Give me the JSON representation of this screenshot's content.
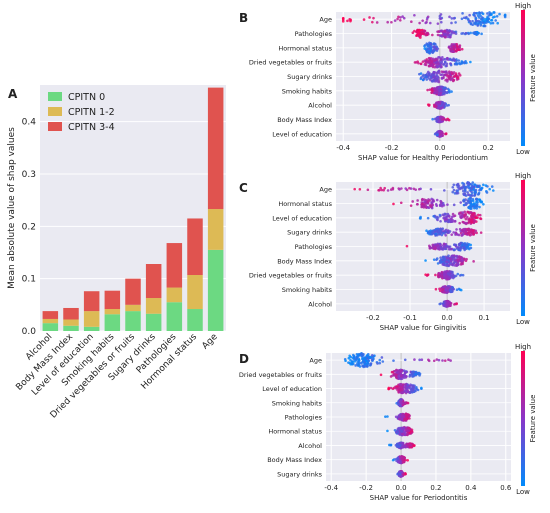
{
  "colors": {
    "cpitn0": "#6cd982",
    "cpitn12": "#ddba55",
    "cpitn34": "#e0534f",
    "panel_bg": "#eaeaf2",
    "high": "#ff0052",
    "low": "#008bfb"
  },
  "chart_data": [
    {
      "panel": "A",
      "type": "bar",
      "stacked": true,
      "ylabel": "Mean absolute value of shap values",
      "xlabel": "",
      "ylim": [
        0,
        0.47
      ],
      "yticks": [
        0.0,
        0.1,
        0.2,
        0.3,
        0.4
      ],
      "legend": "top-left",
      "grid": true,
      "categories": [
        "Alcohol",
        "Body Mass Index",
        "Level of education",
        "Smoking habits",
        "Dried vegetables or fruits",
        "Sugary drinks",
        "Pathologies",
        "Hormonal status",
        "Age"
      ],
      "series": [
        {
          "name": "CPITN 0",
          "values": [
            0.015,
            0.01,
            0.008,
            0.032,
            0.038,
            0.033,
            0.055,
            0.042,
            0.155
          ]
        },
        {
          "name": "CPITN 1-2",
          "values": [
            0.008,
            0.012,
            0.03,
            0.01,
            0.012,
            0.03,
            0.028,
            0.065,
            0.078
          ]
        },
        {
          "name": "CPITN 3-4",
          "values": [
            0.015,
            0.022,
            0.038,
            0.035,
            0.05,
            0.065,
            0.085,
            0.108,
            0.232
          ]
        }
      ]
    },
    {
      "panel": "B",
      "type": "scatter",
      "subtype": "shap-violin",
      "xlabel": "SHAP value for Healthy Periodontium",
      "xlim": [
        -0.43,
        0.29
      ],
      "xticks": [
        -0.4,
        -0.2,
        0.0,
        0.2
      ],
      "grid": true,
      "features": [
        "Age",
        "Pathologies",
        "Hormonal status",
        "Dried vegetables or fruits",
        "Sugary drinks",
        "Smoking habits",
        "Alcohol",
        "Body Mass Index",
        "Level of education"
      ],
      "colorbar": {
        "label": "Feature value",
        "high": "High",
        "low": "Low"
      },
      "distributions": [
        {
          "min": -0.4,
          "max": 0.27,
          "modes": [
            [
              -0.25,
              0.25,
              0.15
            ],
            [
              0.02,
              0.3,
              0.55
            ],
            [
              0.17,
              0.07,
              1.0
            ]
          ],
          "lowSide": "right"
        },
        {
          "min": -0.12,
          "max": 0.18,
          "modes": [
            [
              -0.08,
              0.03,
              0.6
            ],
            [
              0.03,
              0.03,
              0.6
            ],
            [
              0.15,
              0.01,
              0.2
            ]
          ],
          "lowSide": "right"
        },
        {
          "min": -0.08,
          "max": 0.12,
          "modes": [
            [
              -0.04,
              0.025,
              0.8
            ],
            [
              0.06,
              0.025,
              0.6
            ]
          ],
          "lowSide": "left"
        },
        {
          "min": -0.14,
          "max": 0.14,
          "modes": [
            [
              -0.02,
              0.05,
              0.7
            ],
            [
              0.06,
              0.04,
              0.3
            ]
          ],
          "lowSide": "right"
        },
        {
          "min": -0.12,
          "max": 0.12,
          "modes": [
            [
              -0.03,
              0.05,
              0.7
            ],
            [
              0.05,
              0.04,
              0.5
            ]
          ],
          "lowSide": "left"
        },
        {
          "min": -0.06,
          "max": 0.06,
          "modes": [
            [
              0.0,
              0.03,
              0.6
            ]
          ],
          "lowSide": "right"
        },
        {
          "min": -0.05,
          "max": 0.05,
          "modes": [
            [
              0.0,
              0.02,
              0.5
            ]
          ],
          "lowSide": "right"
        },
        {
          "min": -0.04,
          "max": 0.04,
          "modes": [
            [
              0.0,
              0.015,
              0.4
            ]
          ],
          "lowSide": "left"
        },
        {
          "min": -0.03,
          "max": 0.03,
          "modes": [
            [
              0.0,
              0.012,
              0.4
            ]
          ],
          "lowSide": "left"
        }
      ]
    },
    {
      "panel": "C",
      "type": "scatter",
      "subtype": "shap-violin",
      "xlabel": "SHAP value for Gingivitis",
      "xlim": [
        -0.3,
        0.17
      ],
      "xticks": [
        -0.2,
        -0.1,
        0.0,
        0.1
      ],
      "grid": true,
      "features": [
        "Age",
        "Hormonal status",
        "Level of education",
        "Sugary drinks",
        "Pathologies",
        "Body Mass Index",
        "Dried vegetables or fruits",
        "Smoking habits",
        "Alcohol"
      ],
      "colorbar": {
        "label": "Feature value",
        "high": "High",
        "low": "Low"
      },
      "distributions": [
        {
          "min": -0.28,
          "max": 0.16,
          "modes": [
            [
              -0.15,
              0.07,
              0.2
            ],
            [
              0.06,
              0.045,
              1.0
            ]
          ],
          "lowSide": "right"
        },
        {
          "min": -0.15,
          "max": 0.11,
          "modes": [
            [
              -0.05,
              0.04,
              0.7
            ],
            [
              0.07,
              0.025,
              0.8
            ]
          ],
          "lowSide": "right"
        },
        {
          "min": -0.08,
          "max": 0.11,
          "modes": [
            [
              0.0,
              0.04,
              0.55
            ],
            [
              0.06,
              0.025,
              0.7
            ]
          ],
          "lowSide": "left"
        },
        {
          "min": -0.08,
          "max": 0.12,
          "modes": [
            [
              -0.02,
              0.03,
              0.5
            ],
            [
              0.05,
              0.03,
              0.5
            ]
          ],
          "lowSide": "left"
        },
        {
          "min": -0.12,
          "max": 0.09,
          "modes": [
            [
              -0.02,
              0.03,
              0.4
            ],
            [
              0.04,
              0.025,
              0.5
            ]
          ],
          "lowSide": "right"
        },
        {
          "min": -0.06,
          "max": 0.1,
          "modes": [
            [
              0.0,
              0.025,
              0.6
            ],
            [
              0.03,
              0.02,
              0.4
            ]
          ],
          "lowSide": "left"
        },
        {
          "min": -0.06,
          "max": 0.06,
          "modes": [
            [
              0.0,
              0.02,
              0.6
            ]
          ],
          "lowSide": "right"
        },
        {
          "min": -0.04,
          "max": 0.04,
          "modes": [
            [
              0.0,
              0.015,
              0.5
            ]
          ],
          "lowSide": "right"
        },
        {
          "min": -0.03,
          "max": 0.03,
          "modes": [
            [
              0.0,
              0.01,
              0.4
            ]
          ],
          "lowSide": "left"
        }
      ]
    },
    {
      "panel": "D",
      "type": "scatter",
      "subtype": "shap-violin",
      "xlabel": "SHAP value for Periodontitis",
      "xlim": [
        -0.43,
        0.63
      ],
      "xticks": [
        -0.4,
        -0.2,
        0.0,
        0.2,
        0.4,
        0.6
      ],
      "grid": true,
      "features": [
        "Age",
        "Dried vegetables or fruits",
        "Level of education",
        "Smoking habits",
        "Pathologies",
        "Hormonal status",
        "Alcohol",
        "Body Mass Index",
        "Sugary drinks"
      ],
      "colorbar": {
        "label": "Feature value",
        "high": "High",
        "low": "Low"
      },
      "distributions": [
        {
          "min": -0.32,
          "max": 0.58,
          "modes": [
            [
              -0.22,
              0.08,
              1.0
            ],
            [
              0.2,
              0.15,
              0.12
            ]
          ],
          "lowSide": "left"
        },
        {
          "min": -0.12,
          "max": 0.14,
          "modes": [
            [
              -0.01,
              0.04,
              0.7
            ],
            [
              0.08,
              0.03,
              0.3
            ]
          ],
          "lowSide": "right"
        },
        {
          "min": -0.08,
          "max": 0.14,
          "modes": [
            [
              0.0,
              0.03,
              0.6
            ],
            [
              0.06,
              0.03,
              0.5
            ]
          ],
          "lowSide": "right"
        },
        {
          "min": -0.05,
          "max": 0.05,
          "modes": [
            [
              0.0,
              0.015,
              0.5
            ]
          ],
          "lowSide": "left"
        },
        {
          "min": -0.1,
          "max": 0.08,
          "modes": [
            [
              0.0,
              0.02,
              0.3
            ],
            [
              0.03,
              0.02,
              0.4
            ]
          ],
          "lowSide": "left"
        },
        {
          "min": -0.08,
          "max": 0.09,
          "modes": [
            [
              0.0,
              0.025,
              0.5
            ],
            [
              0.04,
              0.02,
              0.4
            ]
          ],
          "lowSide": "left"
        },
        {
          "min": -0.07,
          "max": 0.1,
          "modes": [
            [
              0.0,
              0.02,
              0.4
            ],
            [
              0.05,
              0.02,
              0.3
            ]
          ],
          "lowSide": "left"
        },
        {
          "min": -0.05,
          "max": 0.04,
          "modes": [
            [
              0.0,
              0.02,
              0.5
            ]
          ],
          "lowSide": "left"
        },
        {
          "min": -0.03,
          "max": 0.03,
          "modes": [
            [
              0.0,
              0.012,
              0.4
            ]
          ],
          "lowSide": "left"
        }
      ]
    }
  ]
}
